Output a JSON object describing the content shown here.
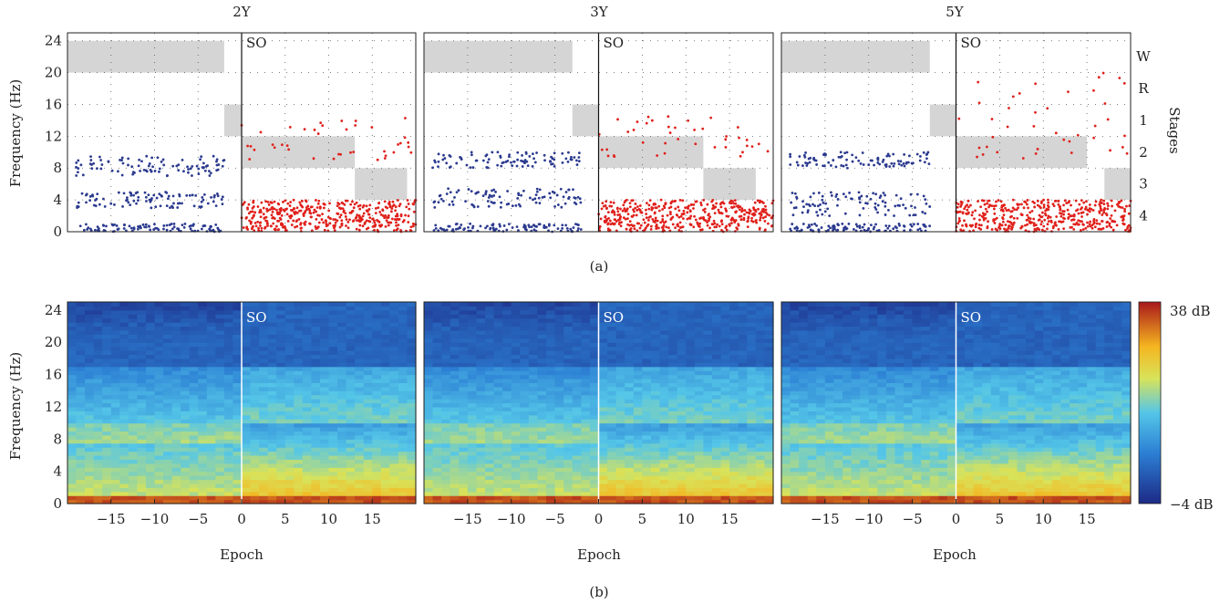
{
  "figure": {
    "panel_a_label": "(a)",
    "panel_b_label": "(b)"
  },
  "top_row": {
    "ylabel": "Frequency (Hz)",
    "yticks": [
      0,
      4,
      8,
      12,
      16,
      20,
      24
    ],
    "right_axis_label": "Stages",
    "stage_labels": [
      "W",
      "R",
      "1",
      "2",
      "3",
      "4"
    ],
    "marker": "SO"
  },
  "bottom_row": {
    "ylabel": "Frequency (Hz)",
    "yticks": [
      0,
      4,
      8,
      12,
      16,
      20,
      24
    ],
    "xlabel": "Epoch",
    "xticks": [
      -15,
      -10,
      -5,
      0,
      5,
      10,
      15
    ],
    "marker": "SO",
    "colorbar": {
      "max_label": "38 dB",
      "min_label": "−4 dB"
    }
  },
  "colors": {
    "pre_points": "#2b3a8f",
    "post_points": "#e0201b",
    "stage_band": "#d5d5d5"
  },
  "chart_data": [
    {
      "type": "scatter",
      "title": "2Y",
      "xlim": [
        -20,
        20
      ],
      "ylim": [
        0,
        25
      ],
      "series": [
        {
          "values_desc": "pre-sleep-onset peaks",
          "bands": [
            {
              "x": [
                -19,
                -2
              ],
              "y": [
                [
                  7,
                  9.5
                ],
                [
                  3,
                  5
                ],
                [
                  0,
                  1
                ]
              ]
            }
          ]
        },
        {
          "values_desc": "post-sleep-onset peaks",
          "bands": [
            {
              "x": [
                0,
                20
              ],
              "y": [
                [
                  0,
                  4
                ],
                [
                  9,
                  14.5
                ]
              ]
            }
          ]
        }
      ],
      "stage_hypnogram": [
        {
          "stage": "W",
          "x": [
            -20,
            -2
          ]
        },
        {
          "stage": "R",
          "x": [
            -2,
            0
          ]
        },
        {
          "stage": "2",
          "x": [
            0,
            13
          ]
        },
        {
          "stage": "3",
          "x": [
            13,
            19
          ]
        }
      ],
      "seed": 11
    },
    {
      "type": "scatter",
      "title": "3Y",
      "xlim": [
        -20,
        20
      ],
      "ylim": [
        0,
        25
      ],
      "series": [
        {
          "values_desc": "pre-sleep-onset peaks",
          "bands": [
            {
              "x": [
                -19,
                -2
              ],
              "y": [
                [
                  8,
                  10
                ],
                [
                  3,
                  5.5
                ],
                [
                  0,
                  1
                ]
              ]
            }
          ]
        },
        {
          "values_desc": "post-sleep-onset peaks",
          "bands": [
            {
              "x": [
                0,
                20
              ],
              "y": [
                [
                  0,
                  4
                ],
                [
                  9,
                  14.5
                ]
              ]
            }
          ]
        }
      ],
      "stage_hypnogram": [
        {
          "stage": "W",
          "x": [
            -20,
            -3
          ]
        },
        {
          "stage": "R",
          "x": [
            -3,
            0
          ]
        },
        {
          "stage": "2",
          "x": [
            0,
            12
          ]
        },
        {
          "stage": "3",
          "x": [
            12,
            18
          ]
        }
      ],
      "seed": 23
    },
    {
      "type": "scatter",
      "title": "5Y",
      "xlim": [
        -20,
        20
      ],
      "ylim": [
        0,
        25
      ],
      "series": [
        {
          "values_desc": "pre-sleep-onset peaks",
          "bands": [
            {
              "x": [
                -19,
                -3
              ],
              "y": [
                [
                  8,
                  10
                ],
                [
                  2,
                  5
                ],
                [
                  0,
                  1
                ]
              ]
            }
          ]
        },
        {
          "values_desc": "post-sleep-onset peaks",
          "bands": [
            {
              "x": [
                0,
                20
              ],
              "y": [
                [
                  0,
                  4
                ],
                [
                  9,
                  20
                ]
              ]
            }
          ]
        }
      ],
      "stage_hypnogram": [
        {
          "stage": "W",
          "x": [
            -20,
            -3
          ]
        },
        {
          "stage": "R",
          "x": [
            -3,
            0
          ]
        },
        {
          "stage": "2",
          "x": [
            0,
            15
          ]
        },
        {
          "stage": "3",
          "x": [
            17,
            20
          ]
        }
      ],
      "seed": 37
    },
    {
      "type": "heatmap",
      "title": "2Y",
      "x_range": [
        -20,
        20
      ],
      "y_range": [
        0,
        25
      ],
      "z_range_db": [
        -4,
        38
      ],
      "seed": 5
    },
    {
      "type": "heatmap",
      "title": "3Y",
      "x_range": [
        -20,
        20
      ],
      "y_range": [
        0,
        25
      ],
      "z_range_db": [
        -4,
        38
      ],
      "seed": 9
    },
    {
      "type": "heatmap",
      "title": "5Y",
      "x_range": [
        -20,
        20
      ],
      "y_range": [
        0,
        25
      ],
      "z_range_db": [
        -4,
        38
      ],
      "seed": 17
    }
  ]
}
